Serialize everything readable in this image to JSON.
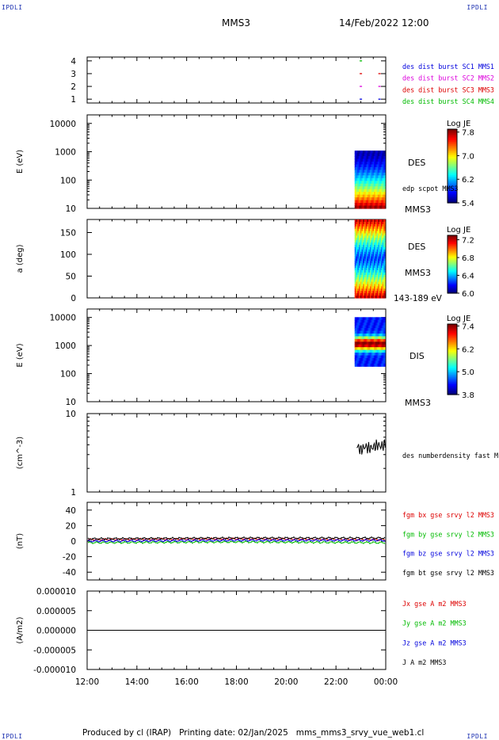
{
  "corner_tag": "IPDLI",
  "header": {
    "spacecraft": "MMS3",
    "datetime": "14/Feb/2022 12:00"
  },
  "footer": {
    "produced_by": "Produced by cl (IRAP)",
    "printing_date": "Printing date: 02/Jan/2025",
    "filename": "mms_mms3_srvy_vue_web1.cl"
  },
  "colors": {
    "blue": "#0000dd",
    "magenta": "#dd00dd",
    "red": "#dd0000",
    "green": "#00bb00",
    "black": "#000000"
  },
  "chart_data": [
    {
      "type": "scatter",
      "panel": "burst-availability",
      "yticks": [
        "1",
        "2",
        "3",
        "4"
      ],
      "ylim": [
        0.7,
        4.3
      ],
      "series": [
        {
          "name": "des dist burst SC1 MMS1",
          "color": "#0000dd",
          "y": 1,
          "x": [
            "23:00",
            "23:45"
          ]
        },
        {
          "name": "des dist burst SC2 MMS2",
          "color": "#dd00dd",
          "y": 2,
          "x": [
            "23:00",
            "23:45"
          ]
        },
        {
          "name": "des dist burst SC3 MMS3",
          "color": "#dd0000",
          "y": 3,
          "x": [
            "23:00",
            "23:45"
          ]
        },
        {
          "name": "des dist burst SC4 MMS4",
          "color": "#00bb00",
          "y": 4,
          "x": [
            "23:00"
          ]
        }
      ]
    },
    {
      "type": "heatmap",
      "panel": "des-energy",
      "ylabel": "E (eV)",
      "yscale": "log",
      "yticks": [
        "10",
        "100",
        "1000",
        "10000"
      ],
      "ylim": [
        10,
        20000
      ],
      "data_window": [
        "22:45",
        "00:00"
      ],
      "energy_range": [
        10,
        1000
      ],
      "label": "DES",
      "sublabel": "edp scpot MMS3",
      "spacecraft": "MMS3",
      "colorbar": {
        "title": "Log JE",
        "ticks": [
          "7.8",
          "7.0",
          "6.2",
          "5.4"
        ],
        "range": [
          5.4,
          7.9
        ]
      }
    },
    {
      "type": "heatmap",
      "panel": "des-pitch-angle",
      "ylabel": "a (deg)",
      "yticks": [
        "0",
        "50",
        "100",
        "150"
      ],
      "ylim": [
        0,
        180
      ],
      "data_window": [
        "22:45",
        "00:00"
      ],
      "label": "DES",
      "spacecraft": "MMS3",
      "energy_band": "143-189 eV",
      "colorbar": {
        "title": "Log JE",
        "ticks": [
          "7.2",
          "6.8",
          "6.4",
          "6.0"
        ],
        "range": [
          6.0,
          7.3
        ]
      }
    },
    {
      "type": "heatmap",
      "panel": "dis-energy",
      "ylabel": "E (eV)",
      "yscale": "log",
      "yticks": [
        "10",
        "100",
        "1000",
        "10000"
      ],
      "ylim": [
        10,
        20000
      ],
      "data_window": [
        "22:45",
        "00:00"
      ],
      "energy_range": [
        200,
        10000
      ],
      "label": "DIS",
      "spacecraft": "MMS3",
      "colorbar": {
        "title": "Log JE",
        "ticks": [
          "7.4",
          "6.2",
          "5.0",
          "3.8"
        ],
        "range": [
          3.8,
          7.5
        ]
      }
    },
    {
      "type": "line",
      "panel": "density",
      "ylabel": "(cm^-3)",
      "yscale": "log",
      "yticks": [
        "1",
        "10"
      ],
      "ylim": [
        1,
        10
      ],
      "series": [
        {
          "name": "des numberdensity fast M",
          "color": "#000000",
          "x": [
            "22:50",
            "23:00",
            "23:10",
            "23:20",
            "23:30",
            "23:40",
            "23:50",
            "00:00"
          ],
          "values": [
            3.9,
            3.4,
            3.8,
            3.6,
            3.7,
            4.0,
            3.8,
            4.2
          ]
        }
      ]
    },
    {
      "type": "line",
      "panel": "magnetic-field",
      "ylabel": "(nT)",
      "yticks": [
        "-40",
        "-20",
        "0",
        "20",
        "40"
      ],
      "ylim": [
        -50,
        50
      ],
      "series": [
        {
          "name": "fgm bx gse srvy l2 MMS3",
          "color": "#dd0000",
          "x": [
            "12:00",
            "18:00",
            "00:00"
          ],
          "values": [
            2,
            3,
            2
          ]
        },
        {
          "name": "fgm by gse srvy l2 MMS3",
          "color": "#00bb00",
          "x": [
            "12:00",
            "18:00",
            "00:00"
          ],
          "values": [
            -2,
            -1,
            -2
          ]
        },
        {
          "name": "fgm bz gse srvy l2 MMS3",
          "color": "#0000dd",
          "x": [
            "12:00",
            "18:00",
            "00:00"
          ],
          "values": [
            0,
            1,
            1
          ]
        },
        {
          "name": "fgm bt gse srvy l2 MMS3",
          "color": "#000000",
          "x": [
            "12:00",
            "18:00",
            "00:00"
          ],
          "values": [
            3,
            4,
            4
          ]
        }
      ]
    },
    {
      "type": "line",
      "panel": "current-density",
      "ylabel": "(A/m2)",
      "yticks": [
        "-0.000010",
        "-0.000005",
        "0.000000",
        "0.000005",
        "0.000010"
      ],
      "ylim": [
        -1e-05,
        1e-05
      ],
      "series": [
        {
          "name": "Jx gse A m2 MMS3",
          "color": "#dd0000",
          "values": [
            0,
            0
          ]
        },
        {
          "name": "Jy gse A m2 MMS3",
          "color": "#00bb00",
          "values": [
            0,
            0
          ]
        },
        {
          "name": "Jz gse A m2 MMS3",
          "color": "#0000dd",
          "values": [
            0,
            0
          ]
        },
        {
          "name": "J A m2 MMS3",
          "color": "#000000",
          "values": [
            0,
            0
          ]
        }
      ]
    }
  ],
  "xaxis": {
    "ticks": [
      "12:00",
      "14:00",
      "16:00",
      "18:00",
      "20:00",
      "22:00",
      "00:00"
    ],
    "range_hours": [
      12,
      24
    ]
  }
}
